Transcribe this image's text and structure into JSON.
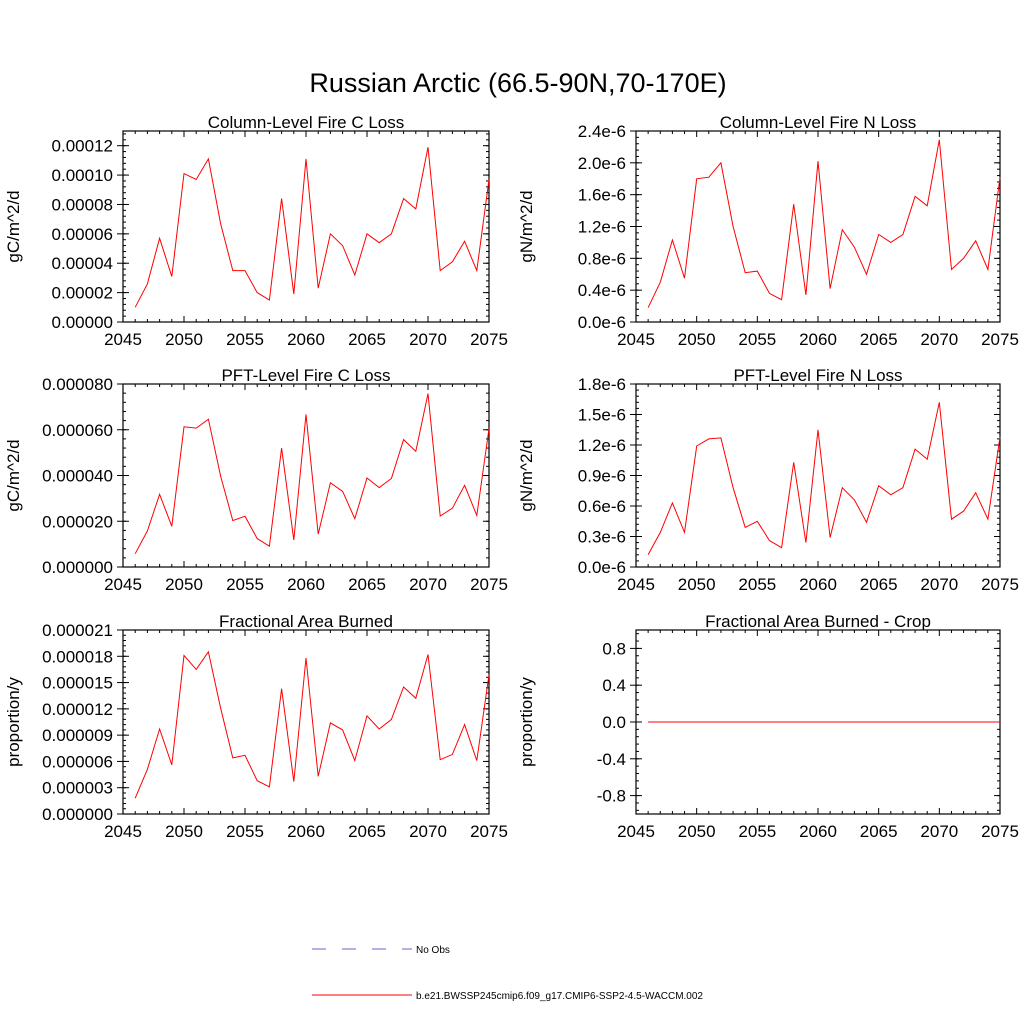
{
  "figure_title": "Russian Arctic (66.5-90N,70-170E)",
  "chart_data": [
    {
      "type": "line",
      "title": "Column-Level Fire C Loss",
      "ylabel": "gC/m^2/d",
      "xlim": [
        2045,
        2075
      ],
      "ylim": [
        0,
        0.00013
      ],
      "xticks": [
        2045,
        2050,
        2055,
        2060,
        2065,
        2070,
        2075
      ],
      "xtick_labels": [
        "2045",
        "2050",
        "2055",
        "2060",
        "2065",
        "2070",
        "2075"
      ],
      "yticks": [
        0,
        2e-05,
        4e-05,
        6e-05,
        8e-05,
        0.0001,
        0.00012
      ],
      "ytick_labels": [
        "0.00000",
        "0.00002",
        "0.00004",
        "0.00006",
        "0.00008",
        "0.00010",
        "0.00012"
      ],
      "series": [
        {
          "name": "b.e21.BWSSP245cmip6.f09_g17.CMIP6-SSP2-4.5-WACCM.002",
          "color": "#ff0000",
          "x": [
            2046,
            2047,
            2048,
            2049,
            2050,
            2051,
            2052,
            2053,
            2054,
            2055,
            2056,
            2057,
            2058,
            2059,
            2060,
            2061,
            2062,
            2063,
            2064,
            2065,
            2066,
            2067,
            2068,
            2069,
            2070,
            2071,
            2072,
            2073,
            2074,
            2075
          ],
          "values": [
            1e-05,
            2.6e-05,
            5.7e-05,
            3.1e-05,
            0.000101,
            9.7e-05,
            0.000111,
            6.7e-05,
            3.5e-05,
            3.5e-05,
            2e-05,
            1.5e-05,
            8.4e-05,
            1.9e-05,
            0.000111,
            2.3e-05,
            6e-05,
            5.2e-05,
            3.2e-05,
            6e-05,
            5.4e-05,
            6e-05,
            8.4e-05,
            7.7e-05,
            0.000119,
            3.5e-05,
            4.1e-05,
            5.5e-05,
            3.5e-05,
            9.7e-05
          ]
        }
      ]
    },
    {
      "type": "line",
      "title": "Column-Level Fire N Loss",
      "ylabel": "gN/m^2/d",
      "xlim": [
        2045,
        2075
      ],
      "ylim": [
        0,
        2.4e-06
      ],
      "xticks": [
        2045,
        2050,
        2055,
        2060,
        2065,
        2070,
        2075
      ],
      "xtick_labels": [
        "2045",
        "2050",
        "2055",
        "2060",
        "2065",
        "2070",
        "2075"
      ],
      "yticks": [
        0,
        4e-07,
        8e-07,
        1.2e-06,
        1.6e-06,
        2e-06,
        2.4e-06
      ],
      "ytick_labels": [
        "0.0e-6",
        "0.4e-6",
        "0.8e-6",
        "1.2e-6",
        "1.6e-6",
        "2.0e-6",
        "2.4e-6"
      ],
      "series": [
        {
          "name": "b.e21.BWSSP245cmip6.f09_g17.CMIP6-SSP2-4.5-WACCM.002",
          "color": "#ff0000",
          "x": [
            2046,
            2047,
            2048,
            2049,
            2050,
            2051,
            2052,
            2053,
            2054,
            2055,
            2056,
            2057,
            2058,
            2059,
            2060,
            2061,
            2062,
            2063,
            2064,
            2065,
            2066,
            2067,
            2068,
            2069,
            2070,
            2071,
            2072,
            2073,
            2074,
            2075
          ],
          "values": [
            1.8e-07,
            5e-07,
            1.03e-06,
            5.5e-07,
            1.8e-06,
            1.82e-06,
            2e-06,
            1.2e-06,
            6.2e-07,
            6.4e-07,
            3.6e-07,
            2.8e-07,
            1.48e-06,
            3.4e-07,
            2.02e-06,
            4.2e-07,
            1.16e-06,
            9.4e-07,
            6e-07,
            1.1e-06,
            1e-06,
            1.1e-06,
            1.58e-06,
            1.46e-06,
            2.29e-06,
            6.6e-07,
            8e-07,
            1.02e-06,
            6.6e-07,
            1.82e-06
          ]
        }
      ]
    },
    {
      "type": "line",
      "title": "PFT-Level Fire C Loss",
      "ylabel": "gC/m^2/d",
      "xlim": [
        2045,
        2075
      ],
      "ylim": [
        0,
        8e-05
      ],
      "xticks": [
        2045,
        2050,
        2055,
        2060,
        2065,
        2070,
        2075
      ],
      "xtick_labels": [
        "2045",
        "2050",
        "2055",
        "2060",
        "2065",
        "2070",
        "2075"
      ],
      "yticks": [
        0,
        2e-05,
        4e-05,
        6e-05,
        8e-05
      ],
      "ytick_labels": [
        "0.000000",
        "0.000020",
        "0.000040",
        "0.000060",
        "0.000080"
      ],
      "series": [
        {
          "name": "b.e21.BWSSP245cmip6.f09_g17.CMIP6-SSP2-4.5-WACCM.002",
          "color": "#ff0000",
          "x": [
            2046,
            2047,
            2048,
            2049,
            2050,
            2051,
            2052,
            2053,
            2054,
            2055,
            2056,
            2057,
            2058,
            2059,
            2060,
            2061,
            2062,
            2063,
            2064,
            2065,
            2066,
            2067,
            2068,
            2069,
            2070,
            2071,
            2072,
            2073,
            2074,
            2075
          ],
          "values": [
            5.8e-06,
            1.58e-05,
            3.18e-05,
            1.78e-05,
            6.13e-05,
            6.07e-05,
            6.46e-05,
            3.98e-05,
            2.03e-05,
            2.22e-05,
            1.24e-05,
            9.1e-06,
            5.2e-05,
            1.18e-05,
            6.67e-05,
            1.44e-05,
            3.68e-05,
            3.31e-05,
            2.11e-05,
            3.89e-05,
            3.47e-05,
            3.87e-05,
            5.57e-05,
            5.06e-05,
            7.58e-05,
            2.23e-05,
            2.57e-05,
            3.57e-05,
            2.25e-05,
            6.05e-05
          ]
        }
      ]
    },
    {
      "type": "line",
      "title": "PFT-Level Fire N Loss",
      "ylabel": "gN/m^2/d",
      "xlim": [
        2045,
        2075
      ],
      "ylim": [
        0,
        1.8e-06
      ],
      "xticks": [
        2045,
        2050,
        2055,
        2060,
        2065,
        2070,
        2075
      ],
      "xtick_labels": [
        "2045",
        "2050",
        "2055",
        "2060",
        "2065",
        "2070",
        "2075"
      ],
      "yticks": [
        0,
        3e-07,
        6e-07,
        9e-07,
        1.2e-06,
        1.5e-06,
        1.8e-06
      ],
      "ytick_labels": [
        "0.0e-6",
        "0.3e-6",
        "0.6e-6",
        "0.9e-6",
        "1.2e-6",
        "1.5e-6",
        "1.8e-6"
      ],
      "series": [
        {
          "name": "b.e21.BWSSP245cmip6.f09_g17.CMIP6-SSP2-4.5-WACCM.002",
          "color": "#ff0000",
          "x": [
            2046,
            2047,
            2048,
            2049,
            2050,
            2051,
            2052,
            2053,
            2054,
            2055,
            2056,
            2057,
            2058,
            2059,
            2060,
            2061,
            2062,
            2063,
            2064,
            2065,
            2066,
            2067,
            2068,
            2069,
            2070,
            2071,
            2072,
            2073,
            2074,
            2075
          ],
          "values": [
            1.2e-07,
            3.4e-07,
            6.3e-07,
            3.4e-07,
            1.19e-06,
            1.26e-06,
            1.27e-06,
            7.8e-07,
            3.9e-07,
            4.5e-07,
            2.6e-07,
            1.9e-07,
            1.03e-06,
            2.4e-07,
            1.35e-06,
            2.9e-07,
            7.8e-07,
            6.6e-07,
            4.4e-07,
            8e-07,
            7.1e-07,
            7.8e-07,
            1.16e-06,
            1.06e-06,
            1.62e-06,
            4.7e-07,
            5.5e-07,
            7.3e-07,
            4.7e-07,
            1.28e-06
          ]
        }
      ]
    },
    {
      "type": "line",
      "title": "Fractional Area Burned",
      "ylabel": "proportion/y",
      "xlim": [
        2045,
        2075
      ],
      "ylim": [
        0,
        2.1e-05
      ],
      "xticks": [
        2045,
        2050,
        2055,
        2060,
        2065,
        2070,
        2075
      ],
      "xtick_labels": [
        "2045",
        "2050",
        "2055",
        "2060",
        "2065",
        "2070",
        "2075"
      ],
      "yticks": [
        0,
        3e-06,
        6e-06,
        9e-06,
        1.2e-05,
        1.5e-05,
        1.8e-05,
        2.1e-05
      ],
      "ytick_labels": [
        "0.000000",
        "0.000003",
        "0.000006",
        "0.000009",
        "0.000012",
        "0.000015",
        "0.000018",
        "0.000021"
      ],
      "series": [
        {
          "name": "b.e21.BWSSP245cmip6.f09_g17.CMIP6-SSP2-4.5-WACCM.002",
          "color": "#ff0000",
          "x": [
            2046,
            2047,
            2048,
            2049,
            2050,
            2051,
            2052,
            2053,
            2054,
            2055,
            2056,
            2057,
            2058,
            2059,
            2060,
            2061,
            2062,
            2063,
            2064,
            2065,
            2066,
            2067,
            2068,
            2069,
            2070,
            2071,
            2072,
            2073,
            2074,
            2075
          ],
          "values": [
            1.8e-06,
            5.1e-06,
            9.7e-06,
            5.6e-06,
            1.81e-05,
            1.65e-05,
            1.85e-05,
            1.21e-05,
            6.4e-06,
            6.7e-06,
            3.8e-06,
            3.1e-06,
            1.43e-05,
            3.7e-06,
            1.78e-05,
            4.3e-06,
            1.04e-05,
            9.6e-06,
            6.1e-06,
            1.12e-05,
            9.7e-06,
            1.08e-05,
            1.45e-05,
            1.32e-05,
            1.82e-05,
            6.2e-06,
            6.8e-06,
            1.02e-05,
            6.1e-06,
            1.59e-05
          ]
        }
      ]
    },
    {
      "type": "line",
      "title": "Fractional Area Burned - Crop",
      "ylabel": "proportion/y",
      "xlim": [
        2045,
        2075
      ],
      "ylim": [
        -1,
        1
      ],
      "xticks": [
        2045,
        2050,
        2055,
        2060,
        2065,
        2070,
        2075
      ],
      "xtick_labels": [
        "2045",
        "2050",
        "2055",
        "2060",
        "2065",
        "2070",
        "2075"
      ],
      "yticks": [
        -0.8,
        -0.4,
        0,
        0.4,
        0.8
      ],
      "ytick_labels": [
        "-0.8",
        "-0.4",
        "0.0",
        "0.4",
        "0.8"
      ],
      "series": [
        {
          "name": "b.e21.BWSSP245cmip6.f09_g17.CMIP6-SSP2-4.5-WACCM.002",
          "color": "#ff0000",
          "x": [
            2046,
            2047,
            2048,
            2049,
            2050,
            2051,
            2052,
            2053,
            2054,
            2055,
            2056,
            2057,
            2058,
            2059,
            2060,
            2061,
            2062,
            2063,
            2064,
            2065,
            2066,
            2067,
            2068,
            2069,
            2070,
            2071,
            2072,
            2073,
            2074,
            2075
          ],
          "values": [
            0,
            0,
            0,
            0,
            0,
            0,
            0,
            0,
            0,
            0,
            0,
            0,
            0,
            0,
            0,
            0,
            0,
            0,
            0,
            0,
            0,
            0,
            0,
            0,
            0,
            0,
            0,
            0,
            0,
            0
          ]
        }
      ]
    }
  ],
  "legend": {
    "entries": [
      {
        "label": "No Obs",
        "color": "#6666cc",
        "style": "dashed"
      },
      {
        "label": "b.e21.BWSSP245cmip6.f09_g17.CMIP6-SSP2-4.5-WACCM.002",
        "color": "#ff0000",
        "style": "solid"
      }
    ]
  }
}
